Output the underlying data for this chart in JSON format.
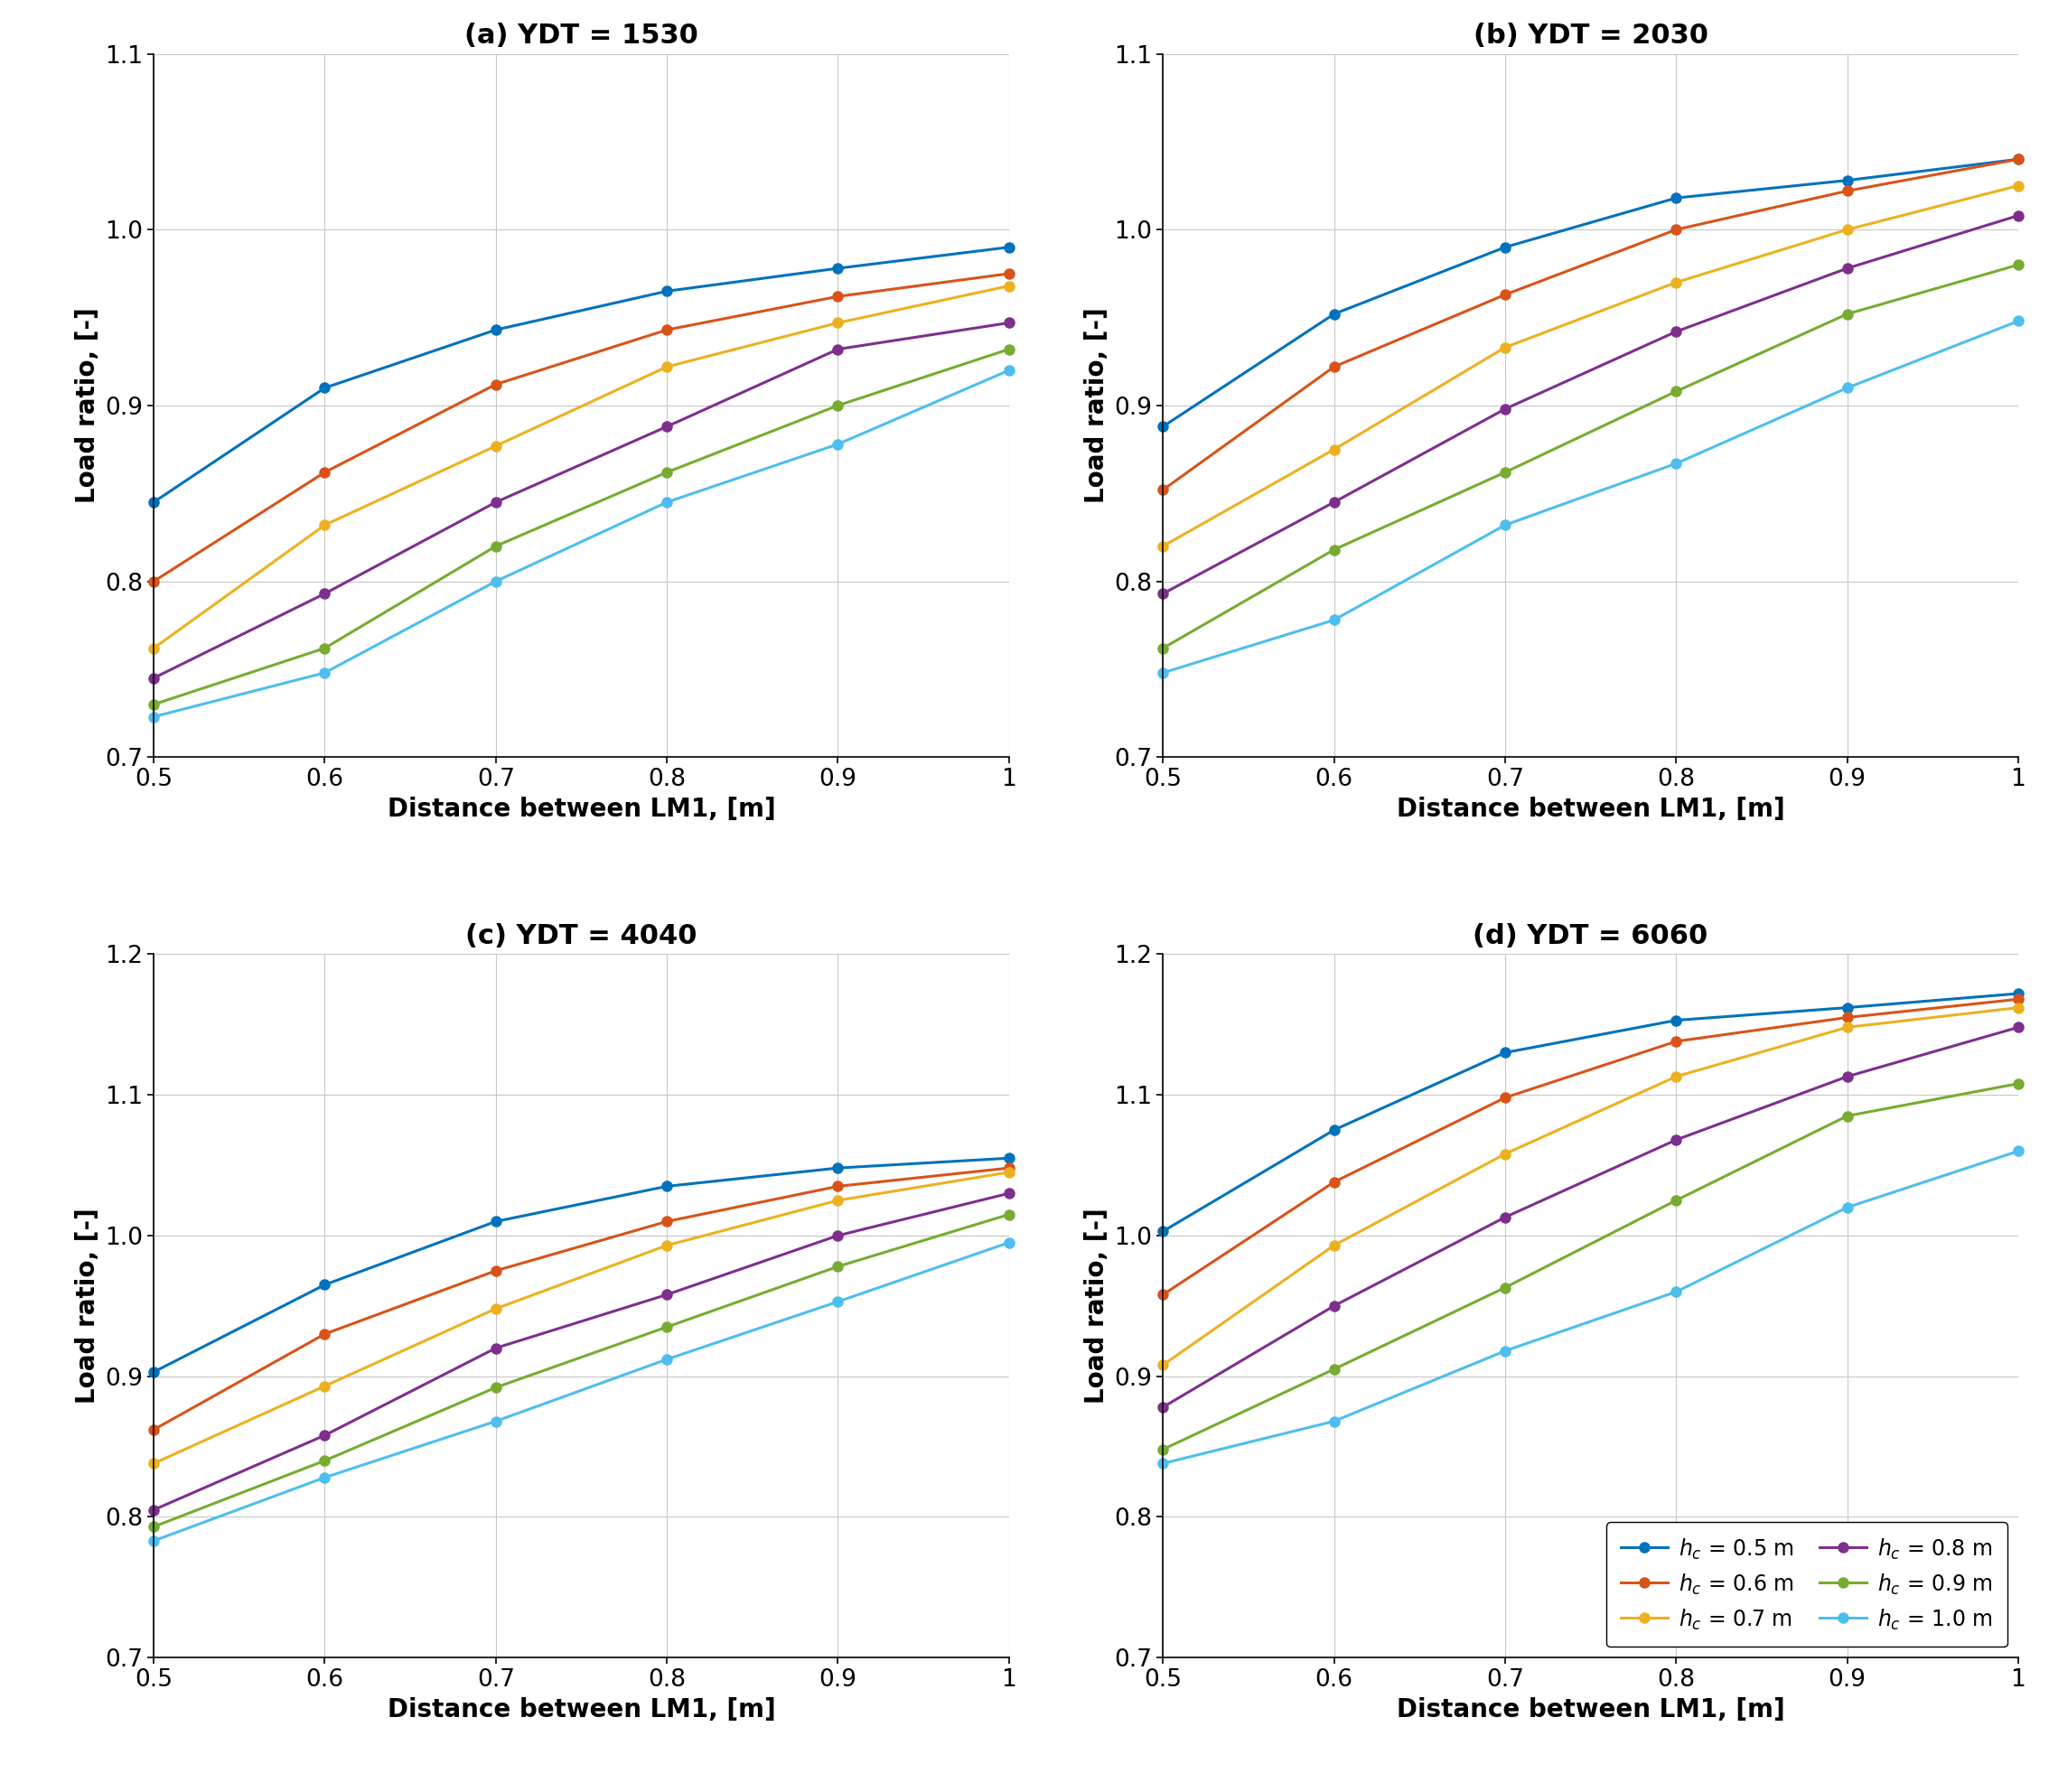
{
  "x": [
    0.5,
    0.6,
    0.7,
    0.8,
    0.9,
    1.0
  ],
  "panels": [
    {
      "title": "(a) YDT = 1530",
      "ylim": [
        0.7,
        1.1
      ],
      "yticks": [
        0.7,
        0.8,
        0.9,
        1.0,
        1.1
      ],
      "series": [
        [
          0.845,
          0.91,
          0.943,
          0.965,
          0.978,
          0.99
        ],
        [
          0.8,
          0.862,
          0.912,
          0.943,
          0.962,
          0.975
        ],
        [
          0.762,
          0.832,
          0.877,
          0.922,
          0.947,
          0.968
        ],
        [
          0.745,
          0.793,
          0.845,
          0.888,
          0.932,
          0.947
        ],
        [
          0.73,
          0.762,
          0.82,
          0.862,
          0.9,
          0.932
        ],
        [
          0.723,
          0.748,
          0.8,
          0.845,
          0.878,
          0.92
        ]
      ]
    },
    {
      "title": "(b) YDT = 2030",
      "ylim": [
        0.7,
        1.1
      ],
      "yticks": [
        0.7,
        0.8,
        0.9,
        1.0,
        1.1
      ],
      "series": [
        [
          0.888,
          0.952,
          0.99,
          1.018,
          1.028,
          1.04
        ],
        [
          0.852,
          0.922,
          0.963,
          1.0,
          1.022,
          1.04
        ],
        [
          0.82,
          0.875,
          0.933,
          0.97,
          1.0,
          1.025
        ],
        [
          0.793,
          0.845,
          0.898,
          0.942,
          0.978,
          1.008
        ],
        [
          0.762,
          0.818,
          0.862,
          0.908,
          0.952,
          0.98
        ],
        [
          0.748,
          0.778,
          0.832,
          0.867,
          0.91,
          0.948
        ]
      ]
    },
    {
      "title": "(c) YDT = 4040",
      "ylim": [
        0.7,
        1.2
      ],
      "yticks": [
        0.7,
        0.8,
        0.9,
        1.0,
        1.1,
        1.2
      ],
      "series": [
        [
          0.903,
          0.965,
          1.01,
          1.035,
          1.048,
          1.055
        ],
        [
          0.862,
          0.93,
          0.975,
          1.01,
          1.035,
          1.048
        ],
        [
          0.838,
          0.893,
          0.948,
          0.993,
          1.025,
          1.045
        ],
        [
          0.805,
          0.858,
          0.92,
          0.958,
          1.0,
          1.03
        ],
        [
          0.793,
          0.84,
          0.892,
          0.935,
          0.978,
          1.015
        ],
        [
          0.783,
          0.828,
          0.868,
          0.912,
          0.953,
          0.995
        ]
      ]
    },
    {
      "title": "(d) YDT = 6060",
      "ylim": [
        0.7,
        1.2
      ],
      "yticks": [
        0.7,
        0.8,
        0.9,
        1.0,
        1.1,
        1.2
      ],
      "series": [
        [
          1.003,
          1.075,
          1.13,
          1.153,
          1.162,
          1.172
        ],
        [
          0.958,
          1.038,
          1.098,
          1.138,
          1.155,
          1.168
        ],
        [
          0.908,
          0.993,
          1.058,
          1.113,
          1.148,
          1.162
        ],
        [
          0.878,
          0.95,
          1.013,
          1.068,
          1.113,
          1.148
        ],
        [
          0.848,
          0.905,
          0.963,
          1.025,
          1.085,
          1.108
        ],
        [
          0.838,
          0.868,
          0.918,
          0.96,
          1.02,
          1.06
        ]
      ]
    }
  ],
  "colors": [
    "#0072BD",
    "#D95319",
    "#EDB120",
    "#7E2F8E",
    "#77AC30",
    "#4DBEEE"
  ],
  "legend_labels_raw": [
    "h_c = 0.5 m",
    "h_c = 0.6 m",
    "h_c = 0.7 m",
    "h_c = 0.8 m",
    "h_c = 0.9 m",
    "h_c = 1.0 m"
  ],
  "xlabel": "Distance between LM1, [m]",
  "ylabel": "Load ratio, [-]",
  "linewidth": 2.2,
  "markersize": 8
}
